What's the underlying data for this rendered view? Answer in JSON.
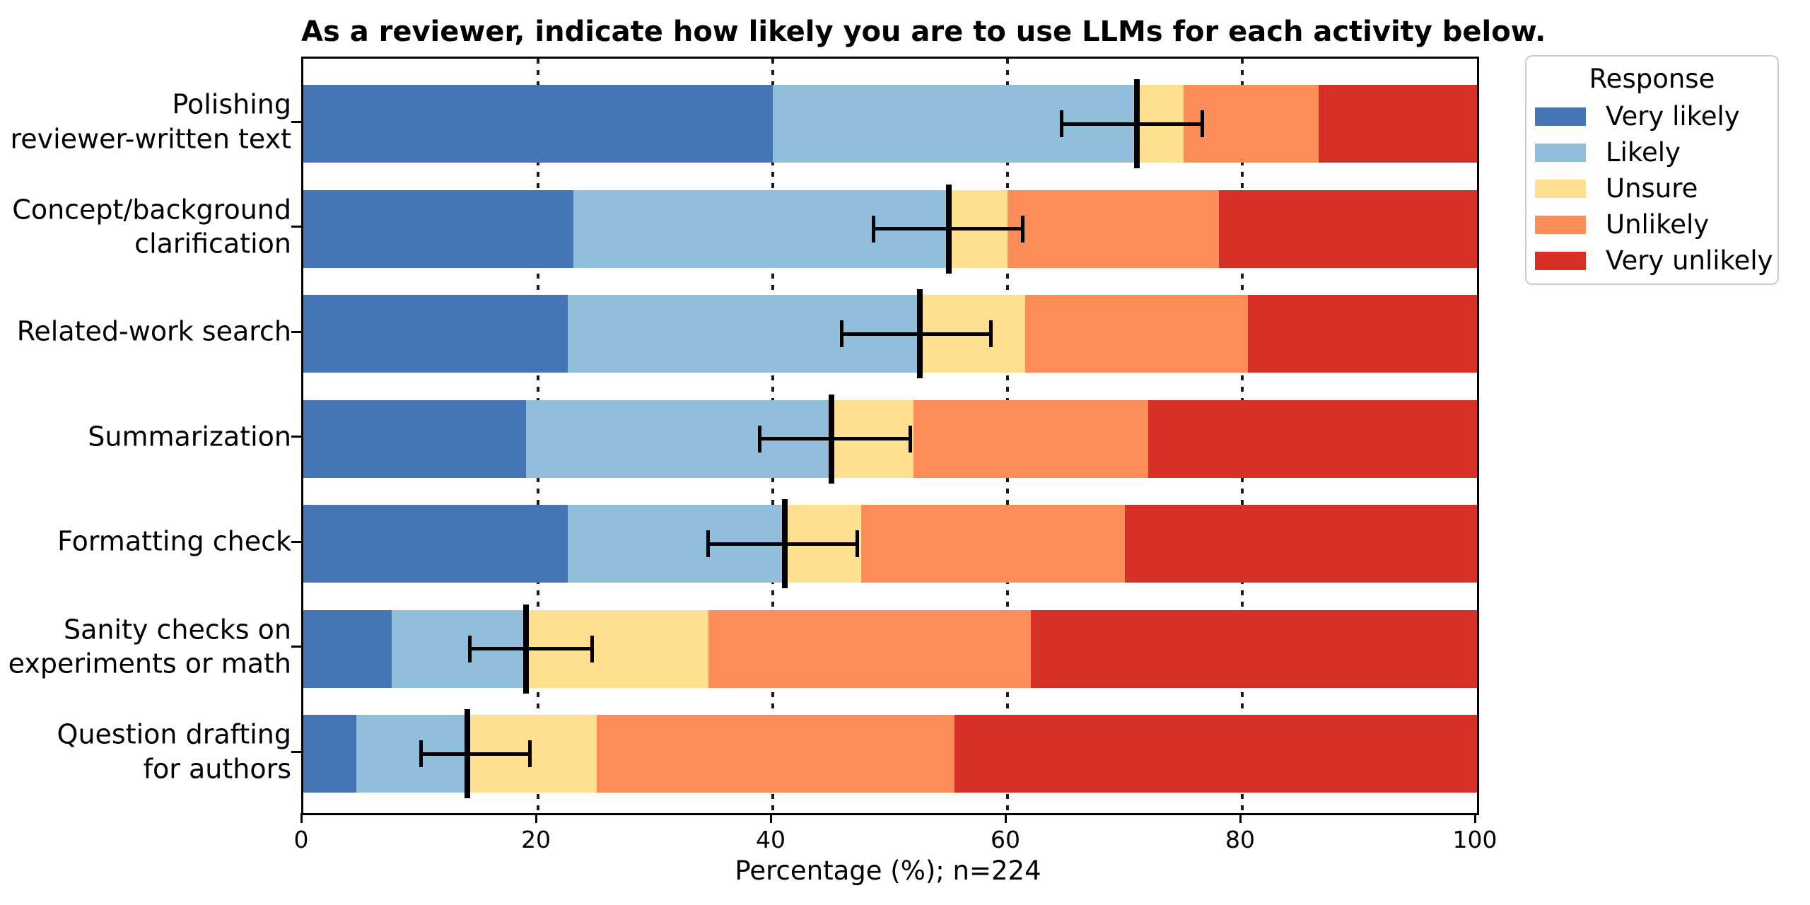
{
  "figure": {
    "background": "#ffffff",
    "text_color": "#000000"
  },
  "chart_data": {
    "type": "bar",
    "orientation": "horizontal",
    "stacked": true,
    "title": "As a reviewer, indicate how likely you are to use LLMs for each activity below.",
    "xlabel": "Percentage (%); n=224",
    "xlim": [
      0,
      100
    ],
    "x_ticks": [
      0,
      20,
      40,
      60,
      80,
      100
    ],
    "gridlines_x": [
      20,
      40,
      60,
      80
    ],
    "grid_style": "dotted",
    "categories": [
      "Polishing\nreviewer-written text",
      "Concept/background\nclarification",
      "Related-work search",
      "Summarization",
      "Formatting check",
      "Sanity checks on\nexperiments or math",
      "Question drafting\nfor authors"
    ],
    "series": [
      {
        "name": "Very likely",
        "color": "#4575b4",
        "values": [
          40.0,
          23.0,
          22.5,
          19.0,
          22.5,
          7.5,
          4.5
        ]
      },
      {
        "name": "Likely",
        "color": "#91bfdb",
        "values": [
          31.0,
          32.0,
          30.0,
          26.0,
          18.5,
          11.5,
          9.5
        ]
      },
      {
        "name": "Unsure",
        "color": "#fee090",
        "values": [
          4.0,
          5.0,
          9.0,
          7.0,
          6.5,
          15.5,
          11.0
        ]
      },
      {
        "name": "Unlikely",
        "color": "#fc8d59",
        "values": [
          11.5,
          18.0,
          19.0,
          20.0,
          22.5,
          27.5,
          30.5
        ]
      },
      {
        "name": "Very unlikely",
        "color": "#d73027",
        "values": [
          13.5,
          22.0,
          19.5,
          28.0,
          30.0,
          38.0,
          44.5
        ]
      }
    ],
    "error_bars": [
      {
        "center": 71.0,
        "low": 64.6,
        "high": 76.6
      },
      {
        "center": 55.0,
        "low": 48.6,
        "high": 61.3
      },
      {
        "center": 52.5,
        "low": 45.9,
        "high": 58.6
      },
      {
        "center": 45.0,
        "low": 38.9,
        "high": 51.7
      },
      {
        "center": 41.0,
        "low": 34.5,
        "high": 47.2
      },
      {
        "center": 19.0,
        "low": 14.2,
        "high": 24.6
      },
      {
        "center": 14.0,
        "low": 10.0,
        "high": 19.3
      }
    ],
    "error_bar_color": "#000000",
    "legend": {
      "title": "Response",
      "position": "upper-right-outside",
      "entries": [
        "Very likely",
        "Likely",
        "Unsure",
        "Unlikely",
        "Very unlikely"
      ]
    }
  }
}
